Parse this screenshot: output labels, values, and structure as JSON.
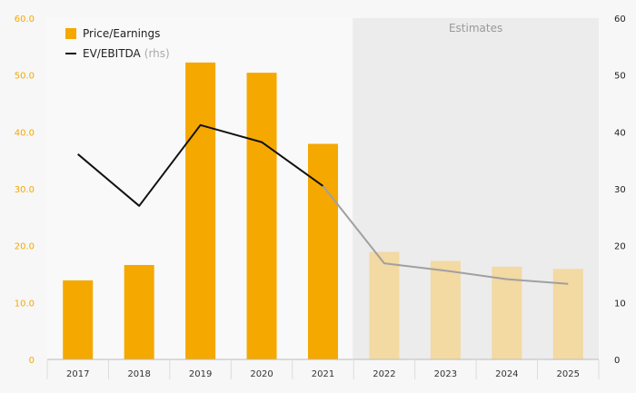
{
  "chart_data": {
    "type": "bar",
    "categories": [
      "2017",
      "2018",
      "2019",
      "2020",
      "2021",
      "2022",
      "2023",
      "2024",
      "2025"
    ],
    "series": [
      {
        "name": "Price/Earnings",
        "type": "bar",
        "axis": "left",
        "values": [
          13.9,
          16.6,
          52.2,
          50.4,
          37.9,
          18.9,
          17.3,
          16.3,
          15.9
        ]
      },
      {
        "name": "EV/EBITDA",
        "name_suffix": "(rhs)",
        "type": "line",
        "axis": "right",
        "values": [
          36.1,
          27.0,
          41.2,
          38.2,
          30.5,
          16.9,
          15.6,
          14.1,
          13.3
        ]
      }
    ],
    "left_axis": {
      "ticks": [
        "0",
        "10.0",
        "20.0",
        "30.0",
        "40.0",
        "50.0",
        "60.0"
      ],
      "ylim": [
        0,
        60
      ]
    },
    "right_axis": {
      "ticks": [
        "0",
        "10",
        "20",
        "30",
        "40",
        "50",
        "60"
      ],
      "ylim": [
        0,
        60
      ]
    },
    "estimates_label": "Estimates",
    "estimates_from": "2022",
    "colors": {
      "bar": "#f5a800",
      "bar_estimate": "#f3d9a2",
      "line": "#111111",
      "line_estimate": "#a0a0a0",
      "estimate_band": "#ececec",
      "plot_bg": "#f9f9f9"
    },
    "legend": {
      "position": "top-left"
    },
    "grid": false
  }
}
